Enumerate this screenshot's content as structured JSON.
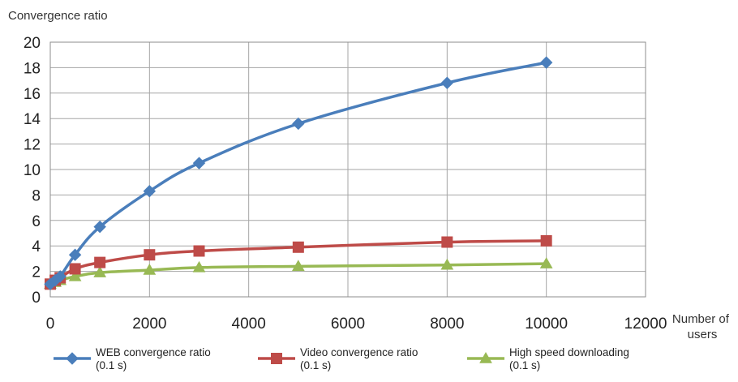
{
  "chart_data": {
    "type": "line",
    "title": "",
    "ylabel": "Convergence ratio",
    "xlabel": "Number of users",
    "xlabel_lines": [
      "Number of",
      "users"
    ],
    "xlim": [
      0,
      12000
    ],
    "ylim": [
      0,
      20
    ],
    "xticks": [
      0,
      2000,
      4000,
      6000,
      8000,
      10000,
      12000
    ],
    "yticks": [
      0,
      2,
      4,
      6,
      8,
      10,
      12,
      14,
      16,
      18,
      20
    ],
    "grid": true,
    "legend_position": "bottom",
    "series": [
      {
        "name": "WEB convergence ratio (0.1 s)",
        "name_lines": [
          "WEB convergence ratio",
          "(0.1 s)"
        ],
        "color": "#4A7EBB",
        "marker": "diamond",
        "x": [
          0,
          100,
          200,
          500,
          1000,
          2000,
          3000,
          5000,
          8000,
          10000
        ],
        "y": [
          1.0,
          1.3,
          1.6,
          3.3,
          5.5,
          8.3,
          10.5,
          13.6,
          16.8,
          18.4
        ]
      },
      {
        "name": "Video convergence ratio (0.1 s)",
        "name_lines": [
          "Video convergence ratio",
          "(0.1 s)"
        ],
        "color": "#BE4B48",
        "marker": "square",
        "x": [
          0,
          100,
          200,
          500,
          1000,
          2000,
          3000,
          5000,
          8000,
          10000
        ],
        "y": [
          1.0,
          1.3,
          1.5,
          2.2,
          2.7,
          3.3,
          3.6,
          3.9,
          4.3,
          4.4
        ]
      },
      {
        "name": "High speed downloading (0.1 s)",
        "name_lines": [
          "High speed downloading",
          "(0.1 s)"
        ],
        "color": "#98B954",
        "marker": "triangle",
        "x": [
          0,
          100,
          200,
          500,
          1000,
          2000,
          3000,
          5000,
          8000,
          10000
        ],
        "y": [
          1.0,
          1.15,
          1.3,
          1.6,
          1.9,
          2.1,
          2.3,
          2.4,
          2.5,
          2.6
        ]
      }
    ]
  }
}
